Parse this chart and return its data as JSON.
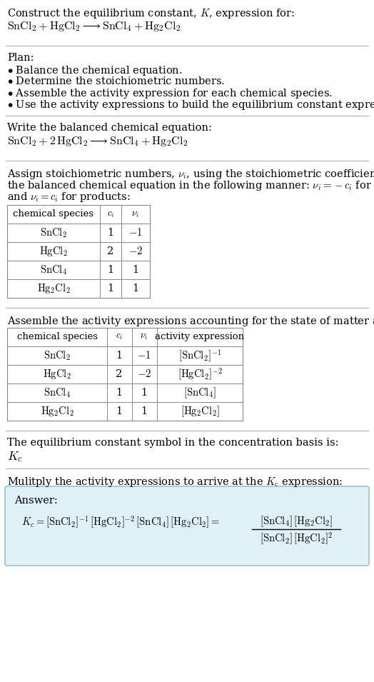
{
  "bg_color": "#ffffff",
  "text_color": "#000000",
  "separator_color": "#aaaaaa",
  "answer_box_bg": "#dff0f7",
  "answer_box_border": "#88bbcc",
  "font_size": 10.5,
  "small_font": 9.5,
  "title_line1": "Construct the equilibrium constant, $K$, expression for:",
  "title_eq": "$\\mathrm{SnCl_2 + HgCl_2 \\longrightarrow SnCl_4 + Hg_2Cl_2}$",
  "plan_header": "Plan:",
  "plan_items": [
    "$\\bullet$ Balance the chemical equation.",
    "$\\bullet$ Determine the stoichiometric numbers.",
    "$\\bullet$ Assemble the activity expression for each chemical species.",
    "$\\bullet$ Use the activity expressions to build the equilibrium constant expression."
  ],
  "balanced_header": "Write the balanced chemical equation:",
  "balanced_eq": "$\\mathrm{SnCl_2 + 2\\,HgCl_2 \\longrightarrow SnCl_4 + Hg_2Cl_2}$",
  "stoich_para": "Assign stoichiometric numbers, $\\nu_i$, using the stoichiometric coefficients, $c_i$, from\nthe balanced chemical equation in the following manner: $\\nu_i = -c_i$ for reactants\nand $\\nu_i = c_i$ for products:",
  "t1_headers": [
    "chemical species",
    "$c_i$",
    "$\\nu_i$"
  ],
  "t1_rows": [
    [
      "$\\mathrm{SnCl_2}$",
      "1",
      "$-1$"
    ],
    [
      "$\\mathrm{HgCl_2}$",
      "2",
      "$-2$"
    ],
    [
      "$\\mathrm{SnCl_4}$",
      "1",
      "1"
    ],
    [
      "$\\mathrm{Hg_2Cl_2}$",
      "1",
      "1"
    ]
  ],
  "activity_header": "Assemble the activity expressions accounting for the state of matter and $\\nu_i$:",
  "t2_headers": [
    "chemical species",
    "$c_i$",
    "$\\nu_i$",
    "activity expression"
  ],
  "t2_rows": [
    [
      "$\\mathrm{SnCl_2}$",
      "1",
      "$-1$",
      "$[\\mathrm{SnCl_2}]^{-1}$"
    ],
    [
      "$\\mathrm{HgCl_2}$",
      "2",
      "$-2$",
      "$[\\mathrm{HgCl_2}]^{-2}$"
    ],
    [
      "$\\mathrm{SnCl_4}$",
      "1",
      "1",
      "$[\\mathrm{SnCl_4}]$"
    ],
    [
      "$\\mathrm{Hg_2Cl_2}$",
      "1",
      "1",
      "$[\\mathrm{Hg_2Cl_2}]$"
    ]
  ],
  "kc_header": "The equilibrium constant symbol in the concentration basis is:",
  "kc_symbol": "$K_c$",
  "multiply_header": "Mulitply the activity expressions to arrive at the $K_c$ expression:",
  "answer_label": "Answer:",
  "kc_full": "$K_c = [\\mathrm{SnCl_2}]^{-1}\\,[\\mathrm{HgCl_2}]^{-2}\\,[\\mathrm{SnCl_4}]\\,[\\mathrm{Hg_2Cl_2}] = $",
  "frac_num": "$[\\mathrm{SnCl_4}]\\,[\\mathrm{Hg_2Cl_2}]$",
  "frac_den": "$[\\mathrm{SnCl_2}]\\,[\\mathrm{HgCl_2}]^2$"
}
